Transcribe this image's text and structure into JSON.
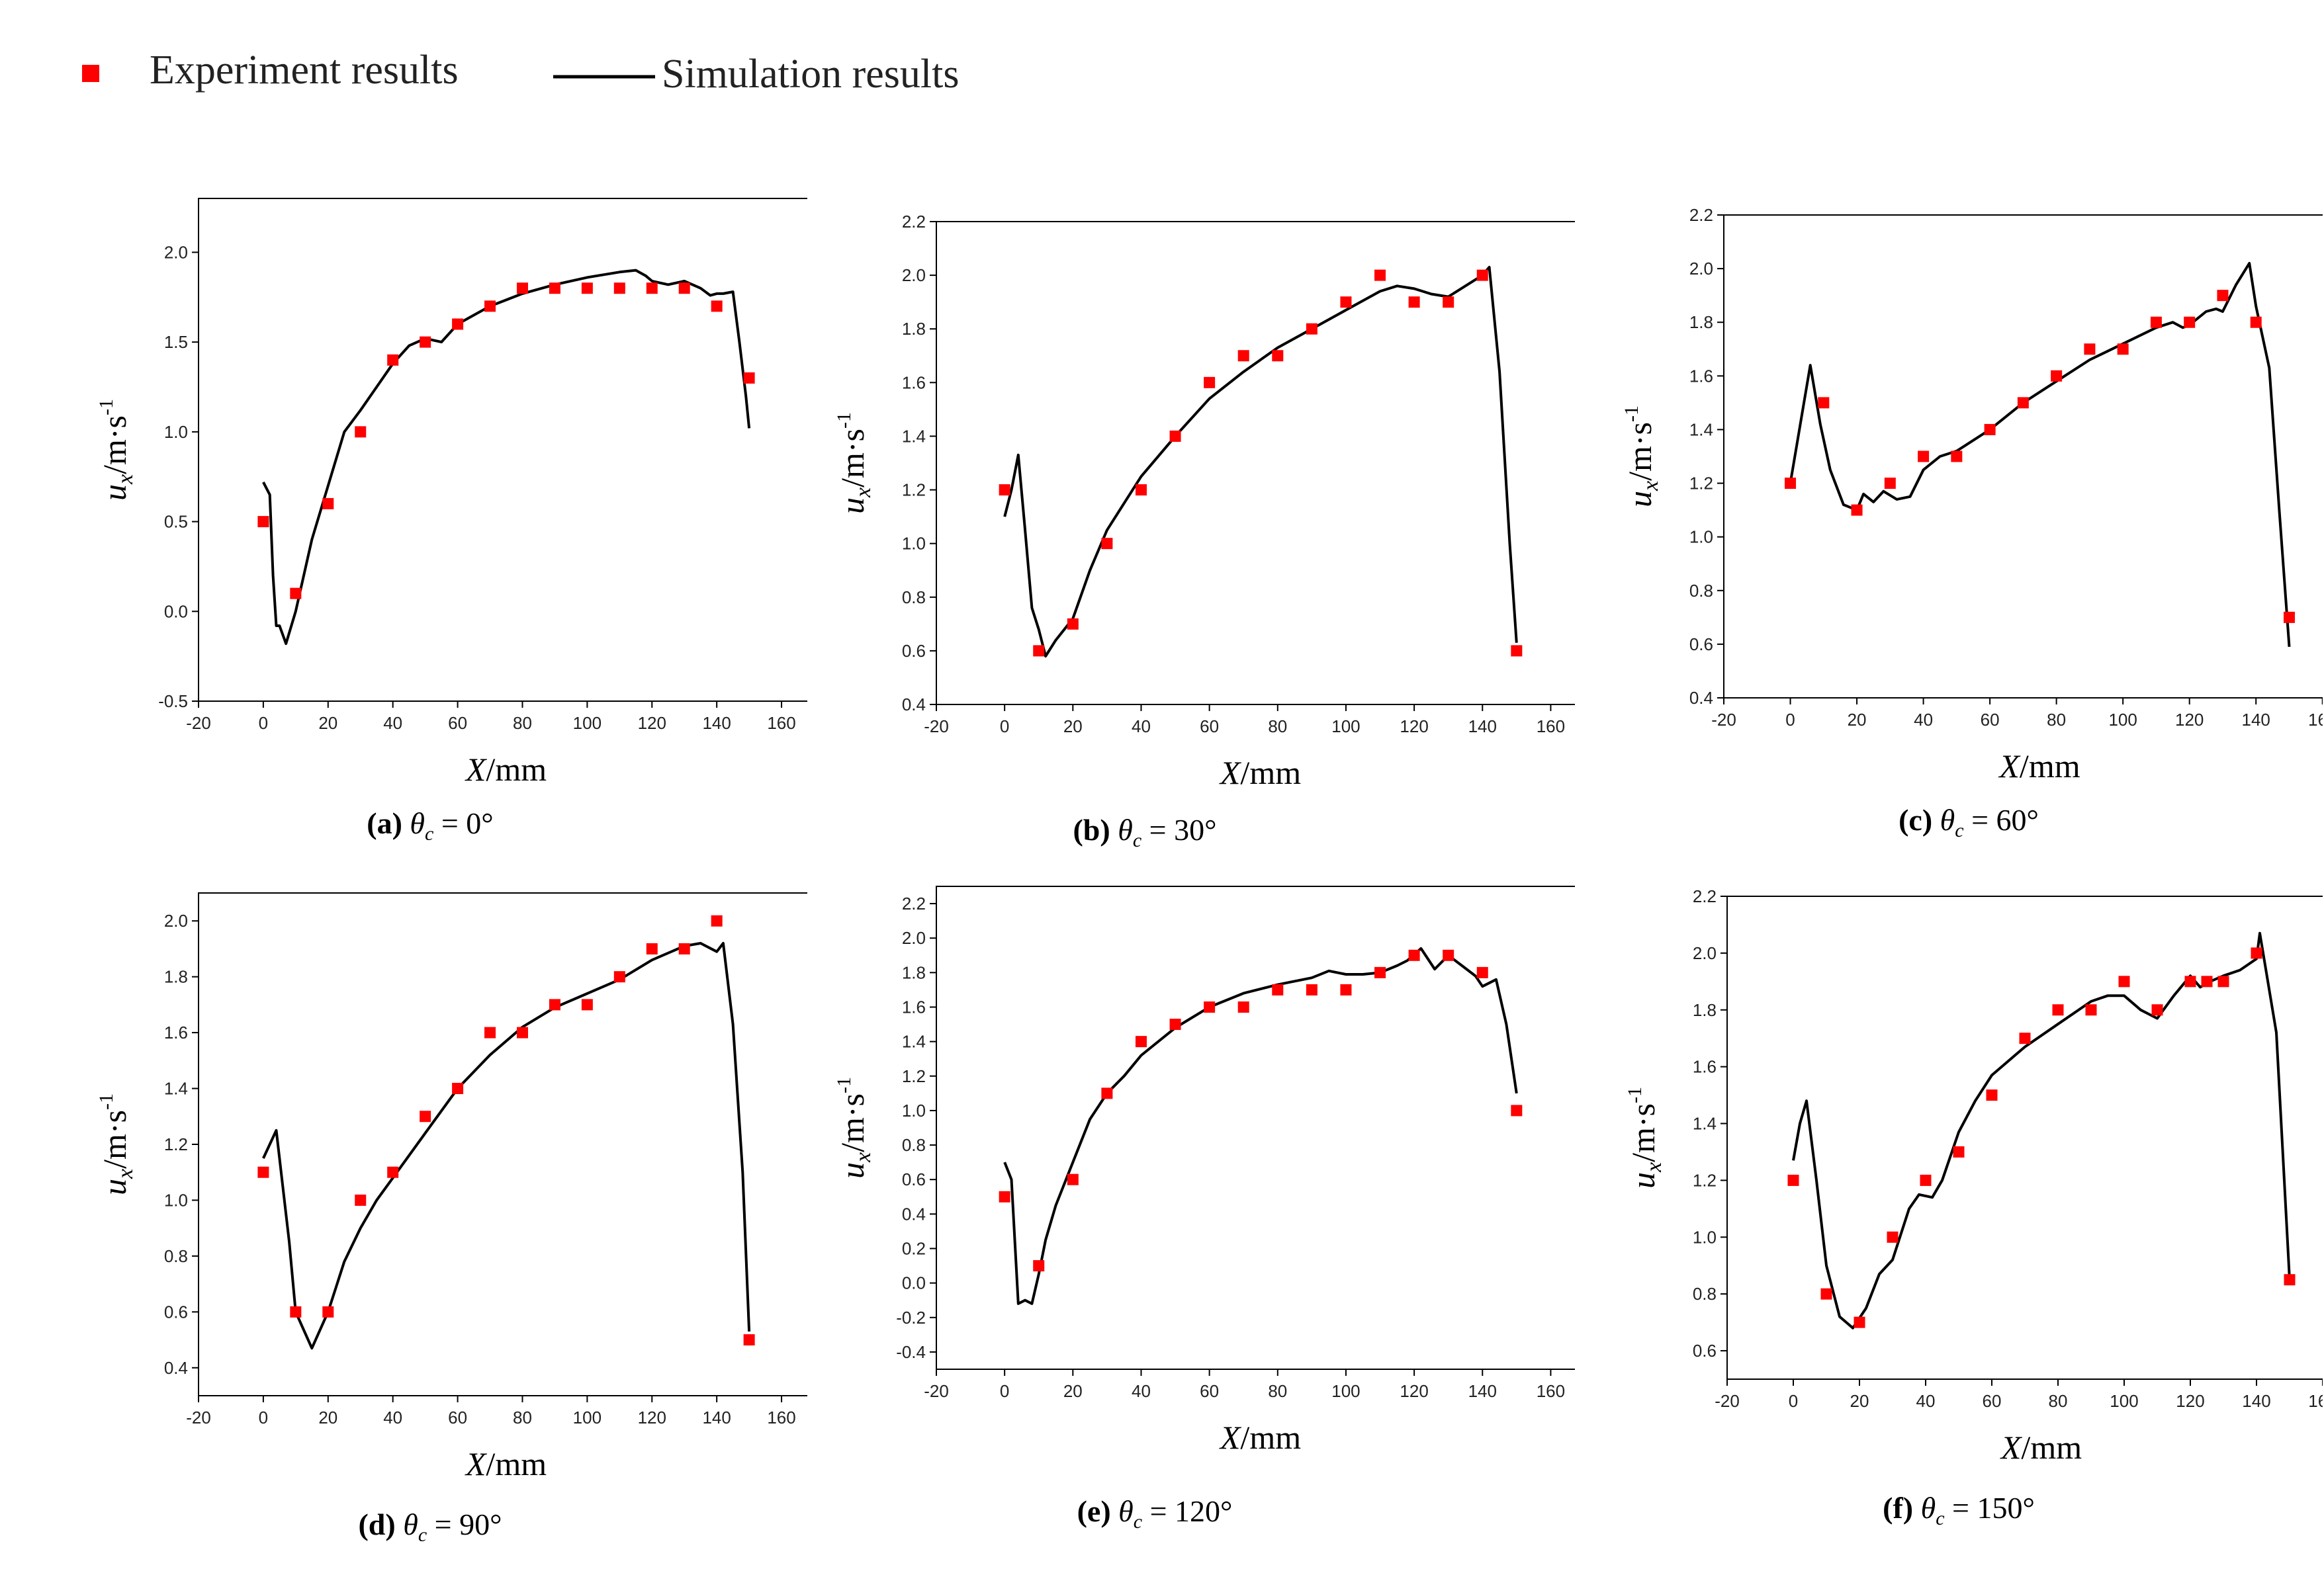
{
  "legend": {
    "experiment_label": "Experiment results",
    "simulation_label": "Simulation results"
  },
  "colors": {
    "experiment": "#ff0000",
    "simulation": "#000000",
    "axis": "#000000"
  },
  "chart_data": [
    {
      "id": "a",
      "type": "line+scatter",
      "caption": {
        "letter": "(a)",
        "theta": "θ",
        "sub": "c",
        "value": "= 0°"
      },
      "xlabel": "X/mm",
      "ylabel": "ux/m·s-1",
      "xlim": [
        -20,
        170
      ],
      "ylim": [
        -0.5,
        2.3
      ],
      "xticks": [
        -20,
        0,
        20,
        40,
        60,
        80,
        100,
        120,
        140,
        160
      ],
      "yticks": [
        -0.5,
        0.0,
        0.5,
        1.0,
        1.5,
        2.0
      ],
      "experiment": {
        "x": [
          0,
          10,
          20,
          30,
          40,
          50,
          60,
          70,
          80,
          90,
          100,
          110,
          120,
          130,
          140,
          150
        ],
        "y": [
          0.5,
          0.1,
          0.6,
          1.0,
          1.4,
          1.5,
          1.6,
          1.7,
          1.8,
          1.8,
          1.8,
          1.8,
          1.8,
          1.8,
          1.7,
          1.3
        ]
      },
      "simulation": {
        "x": [
          0,
          2,
          3,
          4,
          5,
          7,
          10,
          15,
          20,
          25,
          30,
          35,
          40,
          45,
          50,
          55,
          60,
          65,
          70,
          80,
          90,
          100,
          110,
          115,
          118,
          120,
          125,
          130,
          135,
          138,
          140,
          142,
          145,
          147,
          149,
          150
        ],
        "y": [
          0.72,
          0.65,
          0.2,
          -0.08,
          -0.08,
          -0.18,
          0.0,
          0.4,
          0.7,
          1.0,
          1.12,
          1.25,
          1.38,
          1.48,
          1.52,
          1.5,
          1.6,
          1.65,
          1.7,
          1.77,
          1.82,
          1.86,
          1.89,
          1.9,
          1.87,
          1.84,
          1.82,
          1.84,
          1.8,
          1.76,
          1.77,
          1.77,
          1.78,
          1.5,
          1.2,
          1.02
        ]
      }
    },
    {
      "id": "b",
      "type": "line+scatter",
      "caption": {
        "letter": "(b)",
        "theta": "θ",
        "sub": "c",
        "value": "= 30°"
      },
      "xlabel": "X/mm",
      "ylabel": "ux/m·s-1",
      "xlim": [
        -20,
        170
      ],
      "ylim": [
        0.4,
        2.2
      ],
      "xticks": [
        -20,
        0,
        20,
        40,
        60,
        80,
        100,
        120,
        140,
        160
      ],
      "yticks": [
        0.4,
        0.6,
        0.8,
        1.0,
        1.2,
        1.4,
        1.6,
        1.8,
        2.0,
        2.2
      ],
      "experiment": {
        "x": [
          0,
          10,
          20,
          30,
          40,
          50,
          60,
          70,
          80,
          90,
          100,
          110,
          120,
          130,
          140,
          150
        ],
        "y": [
          1.2,
          0.6,
          0.7,
          1.0,
          1.2,
          1.4,
          1.6,
          1.7,
          1.7,
          1.8,
          1.9,
          2.0,
          1.9,
          1.9,
          2.0,
          0.6
        ]
      },
      "simulation": {
        "x": [
          0,
          2,
          4,
          6,
          8,
          10,
          12,
          15,
          20,
          25,
          30,
          35,
          40,
          50,
          60,
          70,
          80,
          90,
          100,
          110,
          115,
          120,
          125,
          130,
          135,
          140,
          142,
          145,
          148,
          150
        ],
        "y": [
          1.1,
          1.2,
          1.33,
          1.05,
          0.76,
          0.68,
          0.58,
          0.64,
          0.72,
          0.9,
          1.05,
          1.15,
          1.25,
          1.4,
          1.54,
          1.64,
          1.73,
          1.8,
          1.87,
          1.94,
          1.96,
          1.95,
          1.93,
          1.92,
          1.96,
          2.0,
          2.03,
          1.64,
          1.0,
          0.63
        ]
      }
    },
    {
      "id": "c",
      "type": "line+scatter",
      "caption": {
        "letter": "(c)",
        "theta": "θ",
        "sub": "c",
        "value": "= 60°"
      },
      "xlabel": "X/mm",
      "ylabel": "ux/m·s-1",
      "xlim": [
        -20,
        170
      ],
      "ylim": [
        0.4,
        2.2
      ],
      "xticks": [
        -20,
        0,
        20,
        40,
        60,
        80,
        100,
        120,
        140,
        160
      ],
      "yticks": [
        0.4,
        0.6,
        0.8,
        1.0,
        1.2,
        1.4,
        1.6,
        1.8,
        2.0,
        2.2
      ],
      "experiment": {
        "x": [
          0,
          10,
          20,
          30,
          40,
          50,
          60,
          70,
          80,
          90,
          100,
          110,
          120,
          130,
          140,
          150
        ],
        "y": [
          1.2,
          1.5,
          1.1,
          1.2,
          1.3,
          1.3,
          1.4,
          1.5,
          1.6,
          1.7,
          1.7,
          1.8,
          1.8,
          1.9,
          1.8,
          0.7
        ]
      },
      "simulation": {
        "x": [
          0,
          3,
          6,
          9,
          12,
          16,
          20,
          22,
          25,
          28,
          32,
          36,
          40,
          45,
          50,
          60,
          70,
          80,
          90,
          100,
          110,
          115,
          118,
          120,
          125,
          128,
          130,
          134,
          138,
          140,
          144,
          147,
          150
        ],
        "y": [
          1.2,
          1.42,
          1.64,
          1.42,
          1.25,
          1.12,
          1.1,
          1.16,
          1.13,
          1.17,
          1.14,
          1.15,
          1.25,
          1.3,
          1.32,
          1.4,
          1.5,
          1.58,
          1.66,
          1.72,
          1.78,
          1.8,
          1.78,
          1.79,
          1.84,
          1.85,
          1.84,
          1.94,
          2.02,
          1.86,
          1.63,
          1.1,
          0.59
        ]
      }
    },
    {
      "id": "d",
      "type": "line+scatter",
      "caption": {
        "letter": "(d)",
        "theta": "θ",
        "sub": "c",
        "value": "= 90°"
      },
      "xlabel": "X/mm",
      "ylabel": "ux/m·s-1",
      "xlim": [
        -20,
        170
      ],
      "ylim": [
        0.3,
        2.1
      ],
      "xticks": [
        -20,
        0,
        20,
        40,
        60,
        80,
        100,
        120,
        140,
        160
      ],
      "yticks": [
        0.4,
        0.6,
        0.8,
        1.0,
        1.2,
        1.4,
        1.6,
        1.8,
        2.0
      ],
      "experiment": {
        "x": [
          0,
          10,
          20,
          30,
          40,
          50,
          60,
          70,
          80,
          90,
          100,
          110,
          120,
          130,
          140,
          150
        ],
        "y": [
          1.1,
          0.6,
          0.6,
          1.0,
          1.1,
          1.3,
          1.4,
          1.6,
          1.6,
          1.7,
          1.7,
          1.8,
          1.9,
          1.9,
          2.0,
          0.5
        ]
      },
      "simulation": {
        "x": [
          0,
          4,
          8,
          10,
          15,
          20,
          25,
          30,
          35,
          40,
          50,
          60,
          70,
          80,
          90,
          100,
          110,
          120,
          130,
          135,
          140,
          142,
          145,
          148,
          150
        ],
        "y": [
          1.15,
          1.25,
          0.85,
          0.6,
          0.47,
          0.6,
          0.78,
          0.9,
          1.0,
          1.08,
          1.24,
          1.4,
          1.52,
          1.62,
          1.69,
          1.74,
          1.79,
          1.86,
          1.91,
          1.92,
          1.89,
          1.92,
          1.63,
          1.1,
          0.53
        ]
      }
    },
    {
      "id": "e",
      "type": "line+scatter",
      "caption": {
        "letter": "(e)",
        "theta": "θ",
        "sub": "c",
        "value": "= 120°"
      },
      "xlabel": "X/mm",
      "ylabel": "ux/m·s-1",
      "xlim": [
        -20,
        170
      ],
      "ylim": [
        -0.5,
        2.3
      ],
      "xticks": [
        -20,
        0,
        20,
        40,
        60,
        80,
        100,
        120,
        140,
        160
      ],
      "yticks": [
        -0.4,
        -0.2,
        0.0,
        0.2,
        0.4,
        0.6,
        0.8,
        1.0,
        1.2,
        1.4,
        1.6,
        1.8,
        2.0,
        2.2
      ],
      "experiment": {
        "x": [
          0,
          10,
          20,
          30,
          40,
          50,
          60,
          70,
          80,
          90,
          100,
          110,
          120,
          130,
          140,
          150
        ],
        "y": [
          0.5,
          0.1,
          0.6,
          1.1,
          1.4,
          1.5,
          1.6,
          1.6,
          1.7,
          1.7,
          1.7,
          1.8,
          1.9,
          1.9,
          1.8,
          1.0
        ]
      },
      "simulation": {
        "x": [
          0,
          2,
          4,
          6,
          8,
          10,
          12,
          15,
          20,
          25,
          30,
          35,
          40,
          50,
          60,
          70,
          80,
          90,
          95,
          100,
          105,
          110,
          115,
          118,
          122,
          126,
          130,
          134,
          138,
          140,
          144,
          147,
          150
        ],
        "y": [
          0.7,
          0.6,
          -0.12,
          -0.1,
          -0.12,
          0.05,
          0.25,
          0.45,
          0.7,
          0.95,
          1.1,
          1.2,
          1.32,
          1.48,
          1.6,
          1.68,
          1.73,
          1.77,
          1.81,
          1.79,
          1.79,
          1.8,
          1.84,
          1.87,
          1.94,
          1.82,
          1.9,
          1.84,
          1.78,
          1.72,
          1.76,
          1.5,
          1.1
        ]
      }
    },
    {
      "id": "f",
      "type": "line+scatter",
      "caption": {
        "letter": "(f)",
        "theta": "θ",
        "sub": "c",
        "value": "= 150°"
      },
      "xlabel": "X/mm",
      "ylabel": "ux/m·s-1",
      "xlim": [
        -20,
        170
      ],
      "ylim": [
        0.5,
        2.2
      ],
      "xticks": [
        -20,
        0,
        20,
        40,
        60,
        80,
        100,
        120,
        140,
        160
      ],
      "yticks": [
        0.6,
        0.8,
        1.0,
        1.2,
        1.4,
        1.6,
        1.8,
        2.0,
        2.2
      ],
      "experiment": {
        "x": [
          0,
          10,
          20,
          30,
          40,
          50,
          60,
          70,
          80,
          90,
          100,
          110,
          120,
          125,
          130,
          140,
          150
        ],
        "y": [
          1.2,
          0.8,
          0.7,
          1.0,
          1.2,
          1.3,
          1.5,
          1.7,
          1.8,
          1.8,
          1.9,
          1.8,
          1.9,
          1.9,
          1.9,
          2.0,
          0.85
        ]
      },
      "simulation": {
        "x": [
          0,
          2,
          4,
          7,
          10,
          14,
          18,
          22,
          26,
          30,
          35,
          38,
          42,
          45,
          50,
          55,
          60,
          70,
          80,
          90,
          95,
          100,
          105,
          110,
          115,
          120,
          123,
          126,
          130,
          135,
          140,
          141,
          146,
          150
        ],
        "y": [
          1.27,
          1.4,
          1.48,
          1.2,
          0.9,
          0.72,
          0.68,
          0.75,
          0.87,
          0.92,
          1.1,
          1.15,
          1.14,
          1.2,
          1.37,
          1.48,
          1.57,
          1.67,
          1.75,
          1.83,
          1.85,
          1.85,
          1.8,
          1.77,
          1.85,
          1.92,
          1.88,
          1.9,
          1.92,
          1.94,
          1.98,
          2.07,
          1.72,
          0.85
        ]
      }
    }
  ]
}
